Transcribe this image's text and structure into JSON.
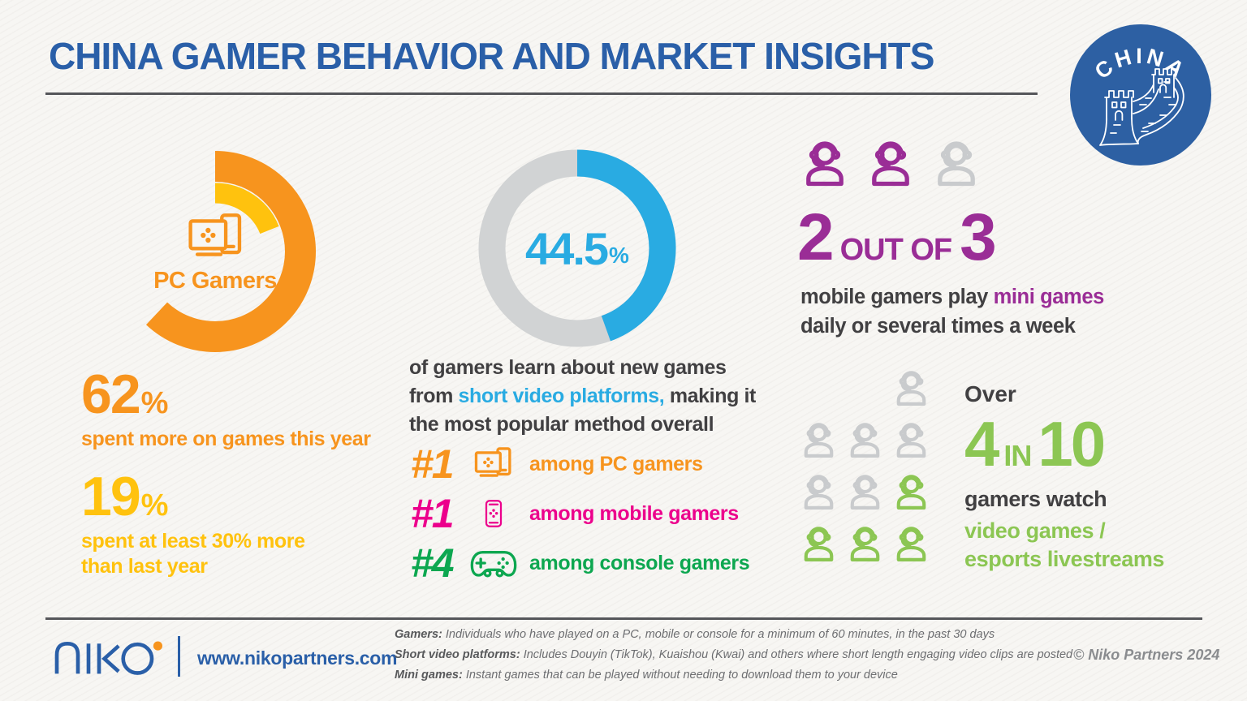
{
  "page": {
    "title": "CHINA GAMER BEHAVIOR AND MARKET INSIGHTS"
  },
  "badge": {
    "label": "CHINA"
  },
  "colors": {
    "orange": "#F7941E",
    "yellow": "#FFC20E",
    "blue": "#29ABE2",
    "dark_blue": "#2A5FA8",
    "badge_blue": "#2D60A3",
    "gray": "#C9CBCD",
    "purple": "#9A2D96",
    "magenta": "#EC008C",
    "green": "#0DA750",
    "lime": "#8CC653",
    "text_dark": "#414042"
  },
  "pc_section": {
    "label": "PC Gamers",
    "stat1": {
      "value": "62",
      "unit": "%",
      "desc": "spent more on games this year"
    },
    "stat2": {
      "value": "19",
      "unit": "%",
      "desc_line1": "spent at least 30% more",
      "desc_line2": "than last year"
    }
  },
  "discovery_section": {
    "pct_value": "44.5",
    "pct_unit": "%",
    "desc_part1": "of gamers learn about new games from",
    "desc_highlight": "short video platforms,",
    "desc_part2": "making it the most popular method overall",
    "rankings": [
      {
        "rank": "#1",
        "label": "among PC gamers",
        "color": "#F7941E",
        "icon": "pc"
      },
      {
        "rank": "#1",
        "label": "among mobile gamers",
        "color": "#EC008C",
        "icon": "mobile"
      },
      {
        "rank": "#4",
        "label": "among console gamers",
        "color": "#0DA750",
        "icon": "console"
      }
    ]
  },
  "mini_games_section": {
    "big1": "2",
    "mid": "OUT OF",
    "big2": "3",
    "icons": [
      "purple",
      "purple",
      "gray"
    ],
    "desc_part1": "mobile gamers play",
    "desc_highlight": "mini games",
    "desc_part2": "daily or several times a week"
  },
  "watch_section": {
    "over": "Over",
    "big1": "4",
    "mid": "IN",
    "big2": "10",
    "grid": [
      [
        0,
        0,
        1
      ],
      [
        1,
        1,
        1
      ],
      [
        1,
        1,
        2
      ],
      [
        2,
        2,
        2
      ]
    ],
    "desc_dark": "gamers watch",
    "desc_green_line1": "video games /",
    "desc_green_line2": "esports livestreams"
  },
  "footer": {
    "website": "www.nikopartners.com",
    "copyright": "© Niko Partners 2024",
    "notes": [
      {
        "label": "Gamers:",
        "text": "Individuals who have played on a PC, mobile or console for a minimum of 60 minutes, in the past 30 days"
      },
      {
        "label": "Short video platforms:",
        "text": "Includes Douyin (TikTok), Kuaishou (Kwai) and others where short length engaging video clips are posted"
      },
      {
        "label": "Mini games:",
        "text": "Instant games that can be played without needing to download them to your device"
      }
    ]
  },
  "chart_data": [
    {
      "type": "pie",
      "title": "PC Gamers spending (partial rings)",
      "series": [
        {
          "name": "spent more on games this year",
          "value": 62,
          "color": "#F7941E"
        },
        {
          "name": "spent at least 30% more than last year",
          "value": 19,
          "color": "#FFC20E"
        }
      ],
      "unit": "%"
    },
    {
      "type": "pie",
      "title": "Gamers who learn about new games from short video platforms",
      "labels": [
        "short video platforms",
        "other methods"
      ],
      "values": [
        44.5,
        55.5
      ],
      "colors": [
        "#29ABE2",
        "#D1D3D4"
      ],
      "center_label": "44.5%"
    },
    {
      "type": "pictograph",
      "title": "Mobile gamers who play mini games daily or several times a week",
      "value": 2,
      "total": 3,
      "unit": "people-icons"
    },
    {
      "type": "pictograph",
      "title": "Gamers who watch video games / esports livestreams",
      "value": 4,
      "total": 10,
      "unit": "people-icons"
    }
  ]
}
